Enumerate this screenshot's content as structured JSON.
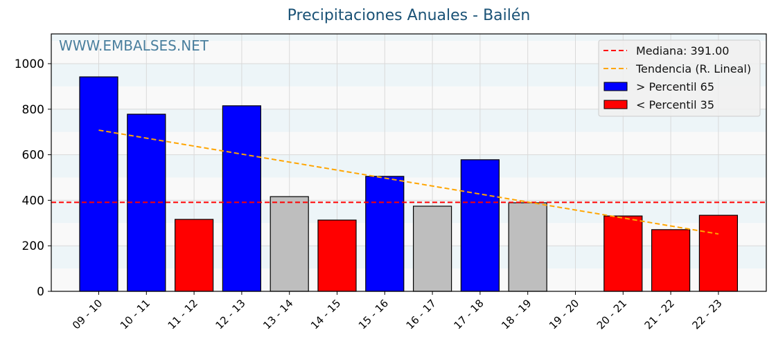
{
  "chart_data": {
    "type": "bar",
    "title": "Precipitaciones Anuales - Bailén",
    "watermark": "WWW.EMBALSES.NET",
    "xlabel": "",
    "ylabel": "",
    "ylim": [
      0,
      1130
    ],
    "yticks": [
      0,
      200,
      400,
      600,
      800,
      1000
    ],
    "grid": true,
    "legend_position": "upper right",
    "categories": [
      "09 - 10",
      "10 - 11",
      "11 - 12",
      "12 - 13",
      "13 - 14",
      "14 - 15",
      "15 - 16",
      "16 - 17",
      "17 - 18",
      "18 - 19",
      "19 - 20",
      "20 - 21",
      "21 - 22",
      "22 - 23"
    ],
    "values": [
      942,
      778,
      316,
      815,
      416,
      313,
      505,
      374,
      578,
      389,
      0,
      331,
      271,
      334
    ],
    "bar_classes": [
      "high",
      "high",
      "low",
      "high",
      "mid",
      "low",
      "high",
      "mid",
      "high",
      "mid",
      "none",
      "low",
      "low",
      "low"
    ],
    "median": 391.0,
    "trend": {
      "start": 708,
      "end": 252,
      "from_index": 0,
      "to_index": 13
    },
    "legend": [
      {
        "label": "Mediana: 391.00",
        "kind": "dashed-line",
        "color": "#ff0000"
      },
      {
        "label": "Tendencia (R. Lineal)",
        "kind": "dashed-line",
        "color": "#ffa500"
      },
      {
        "label": " > Percentil 65",
        "kind": "patch",
        "color": "#0000ff"
      },
      {
        "label": " < Percentil 35",
        "kind": "patch",
        "color": "#ff0000"
      }
    ],
    "colors": {
      "high": "#0000ff",
      "low": "#ff0000",
      "mid": "#bebebe",
      "median": "#ff0000",
      "trend": "#ffa500",
      "band_a": "#f9f9f9",
      "band_b": "#edf5f8",
      "title": "#1a5276"
    }
  }
}
